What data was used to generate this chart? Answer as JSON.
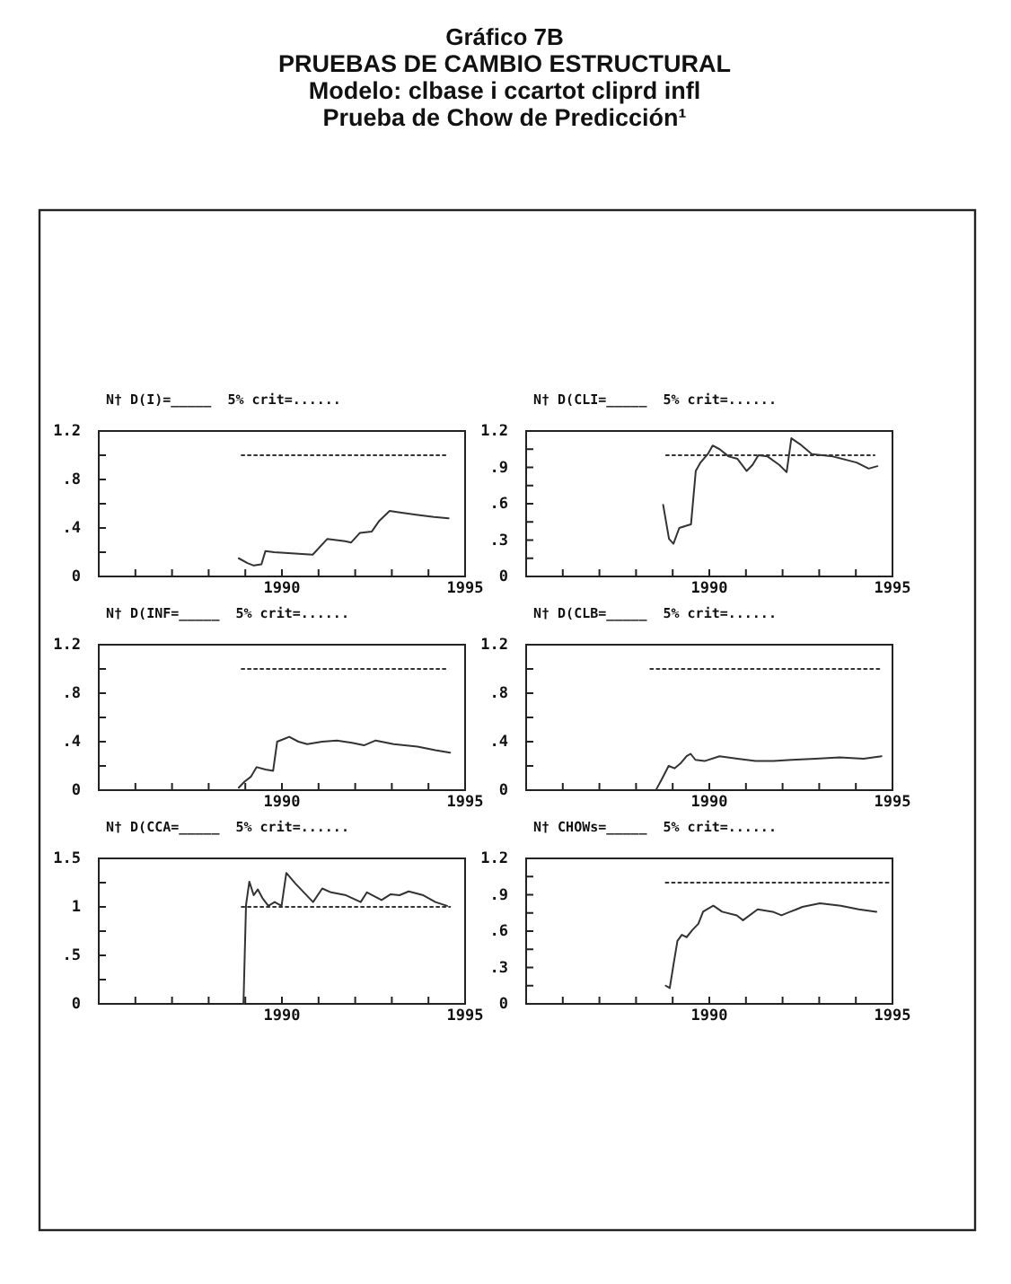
{
  "chart_data": [
    {
      "type": "line",
      "title": "N† D(I)=_____  5% crit=......",
      "annotations": [
        "Gráfico 7B",
        "PRUEBAS DE CAMBIO ESTRUCTURAL",
        "Modelo: clbase i ccartot cliprd infl",
        "Prueba de Chow de Predicción¹"
      ],
      "xlim": [
        1985,
        1995
      ],
      "xticks": [
        {
          "value": 1986,
          "label": null
        },
        {
          "value": 1987,
          "label": null
        },
        {
          "value": 1988,
          "label": null
        },
        {
          "value": 1989,
          "label": null
        },
        {
          "value": 1990,
          "label": "1990"
        },
        {
          "value": 1991,
          "label": null
        },
        {
          "value": 1992,
          "label": null
        },
        {
          "value": 1993,
          "label": null
        },
        {
          "value": 1994,
          "label": null
        },
        {
          "value": 1995,
          "label": "1995"
        }
      ],
      "ylim": [
        0,
        1.2
      ],
      "yticks": [
        0,
        {
          "value": 0.2,
          "label": null
        },
        {
          "value": 0.4,
          "label": ".4"
        },
        {
          "value": 0.6,
          "label": null
        },
        {
          "value": 0.8,
          "label": ".8"
        },
        {
          "value": 1.0,
          "label": null
        },
        1.2
      ],
      "grid": false,
      "marker": "none",
      "series": [
        {
          "color": "#333333",
          "line_style": "solid",
          "x": [
            1988.82,
            1989.06,
            1989.23,
            1989.44,
            1989.55,
            1989.79,
            1990.27,
            1990.84,
            1991.24,
            1991.73,
            1991.89,
            1992.13,
            1992.45,
            1992.66,
            1992.94,
            1993.18,
            1993.66,
            1994.15,
            1994.55
          ],
          "values": [
            0.15,
            0.11,
            0.09,
            0.1,
            0.21,
            0.2,
            0.19,
            0.18,
            0.31,
            0.29,
            0.28,
            0.36,
            0.37,
            0.46,
            0.54,
            0.53,
            0.51,
            0.49,
            0.48
          ]
        },
        {
          "color": "#333333",
          "line_style": "dotted",
          "x": [
            1988.9,
            1994.47
          ],
          "values": [
            1.0,
            1.0
          ]
        }
      ]
    },
    {
      "type": "line",
      "title": "N† D(CLI=_____  5% crit=......",
      "xlim": [
        1985,
        1995
      ],
      "xticks": [
        {
          "value": 1986,
          "label": null
        },
        {
          "value": 1987,
          "label": null
        },
        {
          "value": 1988,
          "label": null
        },
        {
          "value": 1989,
          "label": null
        },
        {
          "value": 1990,
          "label": "1990"
        },
        {
          "value": 1991,
          "label": null
        },
        {
          "value": 1992,
          "label": null
        },
        {
          "value": 1993,
          "label": null
        },
        {
          "value": 1994,
          "label": null
        },
        {
          "value": 1995,
          "label": "1995"
        }
      ],
      "ylim": [
        0,
        1.2
      ],
      "yticks": [
        0,
        {
          "value": 0.15,
          "label": null
        },
        {
          "value": 0.3,
          "label": ".3"
        },
        {
          "value": 0.45,
          "label": null
        },
        {
          "value": 0.6,
          "label": ".6"
        },
        {
          "value": 0.75,
          "label": null
        },
        {
          "value": 0.9,
          "label": ".9"
        },
        {
          "value": 1.05,
          "label": null
        },
        1.2
      ],
      "grid": false,
      "marker": "none",
      "series": [
        {
          "color": "#333333",
          "line_style": "solid",
          "x": [
            1988.74,
            1988.9,
            1989.02,
            1989.18,
            1989.39,
            1989.5,
            1989.63,
            1989.76,
            1989.96,
            1990.09,
            1990.28,
            1990.53,
            1990.77,
            1991.02,
            1991.18,
            1991.34,
            1991.59,
            1991.91,
            1992.11,
            1992.24,
            1992.48,
            1992.8,
            1993.37,
            1994.02,
            1994.35,
            1994.59
          ],
          "values": [
            0.59,
            0.31,
            0.27,
            0.4,
            0.42,
            0.43,
            0.87,
            0.94,
            1.01,
            1.08,
            1.05,
            0.99,
            0.97,
            0.87,
            0.92,
            1.0,
            0.99,
            0.92,
            0.86,
            1.14,
            1.09,
            1.01,
            0.99,
            0.94,
            0.89,
            0.91
          ]
        },
        {
          "color": "#333333",
          "line_style": "dotted",
          "x": [
            1988.82,
            1994.51
          ],
          "values": [
            1.0,
            1.0
          ]
        }
      ]
    },
    {
      "type": "line",
      "title": "N† D(INF=_____  5% crit=......",
      "xlim": [
        1985,
        1995
      ],
      "xticks": [
        {
          "value": 1986,
          "label": null
        },
        {
          "value": 1987,
          "label": null
        },
        {
          "value": 1988,
          "label": null
        },
        {
          "value": 1989,
          "label": null
        },
        {
          "value": 1990,
          "label": "1990"
        },
        {
          "value": 1991,
          "label": null
        },
        {
          "value": 1992,
          "label": null
        },
        {
          "value": 1993,
          "label": null
        },
        {
          "value": 1994,
          "label": null
        },
        {
          "value": 1995,
          "label": "1995"
        }
      ],
      "ylim": [
        0,
        1.2
      ],
      "yticks": [
        0,
        {
          "value": 0.2,
          "label": null
        },
        {
          "value": 0.4,
          "label": ".4"
        },
        {
          "value": 0.6,
          "label": null
        },
        {
          "value": 0.8,
          "label": ".8"
        },
        {
          "value": 1.0,
          "label": null
        },
        1.2
      ],
      "grid": false,
      "marker": "none",
      "series": [
        {
          "color": "#333333",
          "line_style": "solid",
          "x": [
            1988.82,
            1988.98,
            1989.15,
            1989.31,
            1989.55,
            1989.76,
            1989.87,
            1990.04,
            1990.2,
            1990.45,
            1990.69,
            1991.1,
            1991.5,
            1991.91,
            1992.24,
            1992.56,
            1993.05,
            1993.7,
            1994.19,
            1994.59
          ],
          "values": [
            0.02,
            0.07,
            0.11,
            0.19,
            0.17,
            0.16,
            0.4,
            0.42,
            0.44,
            0.4,
            0.38,
            0.4,
            0.41,
            0.39,
            0.37,
            0.41,
            0.38,
            0.36,
            0.33,
            0.31
          ]
        },
        {
          "color": "#333333",
          "line_style": "dotted",
          "x": [
            1988.9,
            1994.51
          ],
          "values": [
            1.0,
            1.0
          ]
        }
      ]
    },
    {
      "type": "line",
      "title": "N† D(CLB=_____  5% crit=......",
      "xlim": [
        1985,
        1995
      ],
      "xticks": [
        {
          "value": 1986,
          "label": null
        },
        {
          "value": 1987,
          "label": null
        },
        {
          "value": 1988,
          "label": null
        },
        {
          "value": 1989,
          "label": null
        },
        {
          "value": 1990,
          "label": "1990"
        },
        {
          "value": 1991,
          "label": null
        },
        {
          "value": 1992,
          "label": null
        },
        {
          "value": 1993,
          "label": null
        },
        {
          "value": 1994,
          "label": null
        },
        {
          "value": 1995,
          "label": "1995"
        }
      ],
      "ylim": [
        0,
        1.2
      ],
      "yticks": [
        0,
        {
          "value": 0.2,
          "label": null
        },
        {
          "value": 0.4,
          "label": ".4"
        },
        {
          "value": 0.6,
          "label": null
        },
        {
          "value": 0.8,
          "label": ".8"
        },
        {
          "value": 1.0,
          "label": null
        },
        1.2
      ],
      "grid": false,
      "marker": "none",
      "series": [
        {
          "color": "#333333",
          "line_style": "solid",
          "x": [
            1988.56,
            1988.72,
            1988.89,
            1989.05,
            1989.21,
            1989.38,
            1989.49,
            1989.62,
            1989.87,
            1990.28,
            1990.77,
            1991.26,
            1991.75,
            1992.25,
            1992.9,
            1993.56,
            1994.21,
            1994.7
          ],
          "values": [
            0.01,
            0.1,
            0.2,
            0.18,
            0.22,
            0.28,
            0.3,
            0.25,
            0.24,
            0.28,
            0.26,
            0.24,
            0.24,
            0.25,
            0.26,
            0.27,
            0.26,
            0.28
          ]
        },
        {
          "color": "#333333",
          "line_style": "dotted",
          "x": [
            1988.39,
            1994.7
          ],
          "values": [
            1.0,
            1.0
          ]
        }
      ]
    },
    {
      "type": "line",
      "title": "N† D(CCA=_____  5% crit=......",
      "xlim": [
        1985,
        1995
      ],
      "xticks": [
        {
          "value": 1986,
          "label": null
        },
        {
          "value": 1987,
          "label": null
        },
        {
          "value": 1988,
          "label": null
        },
        {
          "value": 1989,
          "label": null
        },
        {
          "value": 1990,
          "label": "1990"
        },
        {
          "value": 1991,
          "label": null
        },
        {
          "value": 1992,
          "label": null
        },
        {
          "value": 1993,
          "label": null
        },
        {
          "value": 1994,
          "label": null
        },
        {
          "value": 1995,
          "label": "1995"
        }
      ],
      "ylim": [
        0,
        1.5
      ],
      "yticks": [
        0,
        {
          "value": 0.25,
          "label": null
        },
        {
          "value": 0.5,
          "label": ".5"
        },
        {
          "value": 0.75,
          "label": null
        },
        1,
        {
          "value": 1.25,
          "label": null
        },
        1.5
      ],
      "grid": false,
      "marker": "none",
      "series": [
        {
          "color": "#333333",
          "line_style": "solid",
          "x": [
            1988.95,
            1989.02,
            1989.11,
            1989.23,
            1989.34,
            1989.47,
            1989.63,
            1989.8,
            1989.99,
            1990.12,
            1990.37,
            1990.85,
            1991.1,
            1991.34,
            1991.75,
            1992.15,
            1992.32,
            1992.72,
            1992.97,
            1993.21,
            1993.46,
            1993.86,
            1994.19,
            1994.51
          ],
          "values": [
            0,
            1.02,
            1.26,
            1.12,
            1.18,
            1.09,
            1.01,
            1.05,
            1.01,
            1.35,
            1.24,
            1.05,
            1.19,
            1.15,
            1.12,
            1.05,
            1.15,
            1.07,
            1.13,
            1.12,
            1.16,
            1.12,
            1.05,
            1.01
          ]
        },
        {
          "color": "#333333",
          "line_style": "dotted",
          "x": [
            1988.9,
            1994.59
          ],
          "values": [
            1.0,
            1.0
          ]
        }
      ]
    },
    {
      "type": "line",
      "title": "N† CHOWs=_____  5% crit=......",
      "xlim": [
        1985,
        1995
      ],
      "xticks": [
        {
          "value": 1986,
          "label": null
        },
        {
          "value": 1987,
          "label": null
        },
        {
          "value": 1988,
          "label": null
        },
        {
          "value": 1989,
          "label": null
        },
        {
          "value": 1990,
          "label": "1990"
        },
        {
          "value": 1991,
          "label": null
        },
        {
          "value": 1992,
          "label": null
        },
        {
          "value": 1993,
          "label": null
        },
        {
          "value": 1994,
          "label": null
        },
        {
          "value": 1995,
          "label": "1995"
        }
      ],
      "ylim": [
        0,
        1.2
      ],
      "yticks": [
        0,
        {
          "value": 0.15,
          "label": null
        },
        {
          "value": 0.3,
          "label": ".3"
        },
        {
          "value": 0.45,
          "label": null
        },
        {
          "value": 0.6,
          "label": ".6"
        },
        {
          "value": 0.75,
          "label": null
        },
        {
          "value": 0.9,
          "label": ".9"
        },
        {
          "value": 1.05,
          "label": null
        },
        1.2
      ],
      "grid": false,
      "marker": "none",
      "series": [
        {
          "color": "#333333",
          "line_style": "solid",
          "x": [
            1988.81,
            1988.92,
            1989.02,
            1989.13,
            1989.25,
            1989.38,
            1989.54,
            1989.7,
            1989.83,
            1989.94,
            1990.11,
            1990.35,
            1990.75,
            1990.92,
            1991.32,
            1991.73,
            1991.97,
            1992.21,
            1992.38,
            1992.54,
            1993.02,
            1993.59,
            1994.08,
            1994.56
          ],
          "values": [
            0.15,
            0.13,
            0.32,
            0.52,
            0.57,
            0.55,
            0.61,
            0.66,
            0.76,
            0.78,
            0.81,
            0.76,
            0.73,
            0.69,
            0.78,
            0.76,
            0.73,
            0.76,
            0.78,
            0.8,
            0.83,
            0.81,
            0.78,
            0.76
          ]
        },
        {
          "color": "#333333",
          "line_style": "dotted",
          "x": [
            1988.81,
            1994.9
          ],
          "values": [
            1.0,
            1.0
          ]
        }
      ]
    }
  ]
}
